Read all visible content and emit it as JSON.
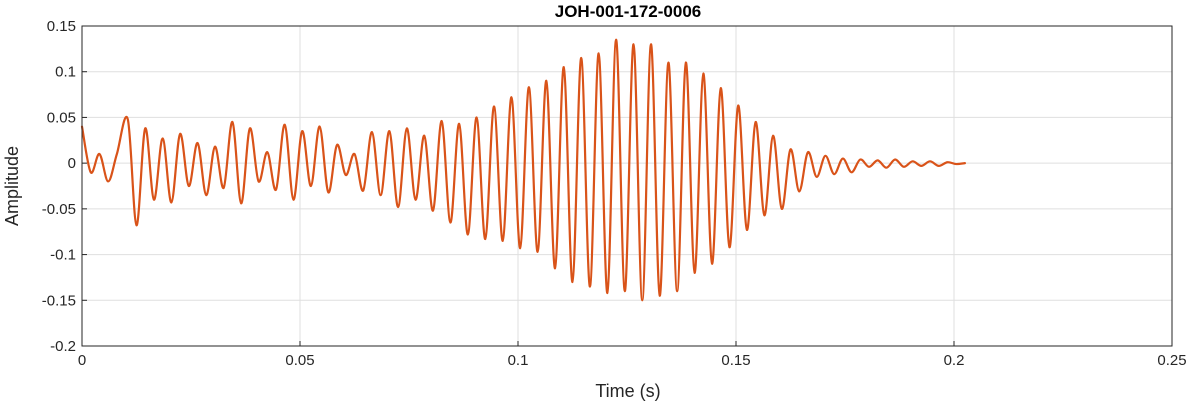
{
  "chart_data": {
    "type": "line",
    "title": "JOH-001-172-0006",
    "xlabel": "Time (s)",
    "ylabel": "Amplitude",
    "xlim": [
      0,
      0.25
    ],
    "ylim": [
      -0.2,
      0.15
    ],
    "xticks": [
      0,
      0.05,
      0.1,
      0.15,
      0.2,
      0.25
    ],
    "xtick_labels": [
      "0",
      "0.05",
      "0.1",
      "0.15",
      "0.2",
      "0.25"
    ],
    "yticks": [
      -0.2,
      -0.15,
      -0.1,
      -0.05,
      0,
      0.05,
      0.1,
      0.15
    ],
    "ytick_labels": [
      "-0.2",
      "-0.15",
      "-0.1",
      "-0.05",
      "0",
      "0.05",
      "0.1",
      "0.15"
    ],
    "grid": true,
    "series": [
      {
        "color": "#D95319",
        "x": [
          0,
          0.002,
          0.004,
          0.006,
          0.008,
          0.0105,
          0.0125,
          0.0145,
          0.0165,
          0.0185,
          0.0205,
          0.0225,
          0.0245,
          0.0265,
          0.0285,
          0.0305,
          0.0325,
          0.0345,
          0.0365,
          0.0385,
          0.0405,
          0.0425,
          0.0445,
          0.0465,
          0.0485,
          0.0505,
          0.0525,
          0.0545,
          0.0565,
          0.0585,
          0.0605,
          0.0625,
          0.0645,
          0.0665,
          0.0685,
          0.0705,
          0.0725,
          0.0745,
          0.0765,
          0.0785,
          0.0805,
          0.0825,
          0.0845,
          0.0865,
          0.0885,
          0.0905,
          0.0925,
          0.0945,
          0.0965,
          0.0985,
          0.1005,
          0.1025,
          0.1045,
          0.1065,
          0.1085,
          0.1105,
          0.1125,
          0.1145,
          0.1165,
          0.1185,
          0.1205,
          0.1225,
          0.1245,
          0.1265,
          0.1285,
          0.1305,
          0.1325,
          0.1345,
          0.1365,
          0.1385,
          0.1405,
          0.1425,
          0.1445,
          0.1465,
          0.1485,
          0.1505,
          0.1525,
          0.1545,
          0.1565,
          0.1585,
          0.1605,
          0.1625,
          0.1645,
          0.1665,
          0.1685,
          0.1705,
          0.1725,
          0.1745,
          0.1765,
          0.1785,
          0.1805,
          0.1825,
          0.1845,
          0.1865,
          0.1885,
          0.1905,
          0.1925,
          0.1945,
          0.1965,
          0.1985,
          0.2005,
          0.2025
        ],
        "y": [
          0.04,
          -0.01,
          0.01,
          -0.02,
          0.01,
          0.048,
          -0.068,
          0.038,
          -0.04,
          0.027,
          -0.043,
          0.032,
          -0.025,
          0.022,
          -0.035,
          0.018,
          -0.027,
          0.045,
          -0.044,
          0.038,
          -0.02,
          0.012,
          -0.029,
          0.042,
          -0.04,
          0.035,
          -0.025,
          0.04,
          -0.032,
          0.02,
          -0.013,
          0.01,
          -0.03,
          0.034,
          -0.035,
          0.035,
          -0.048,
          0.038,
          -0.04,
          0.03,
          -0.052,
          0.046,
          -0.065,
          0.043,
          -0.078,
          0.05,
          -0.083,
          0.062,
          -0.085,
          0.072,
          -0.093,
          0.083,
          -0.097,
          0.09,
          -0.115,
          0.105,
          -0.13,
          0.115,
          -0.135,
          0.12,
          -0.142,
          0.135,
          -0.14,
          0.13,
          -0.15,
          0.13,
          -0.145,
          0.11,
          -0.14,
          0.11,
          -0.12,
          0.098,
          -0.11,
          0.082,
          -0.092,
          0.063,
          -0.073,
          0.045,
          -0.057,
          0.03,
          -0.05,
          0.015,
          -0.031,
          0.012,
          -0.015,
          0.008,
          -0.012,
          0.005,
          -0.01,
          0.004,
          -0.004,
          0.003,
          -0.005,
          0.004,
          -0.004,
          0.002,
          -0.003,
          0.002,
          -0.003,
          0.001,
          -0.001,
          0.0
        ]
      }
    ]
  }
}
